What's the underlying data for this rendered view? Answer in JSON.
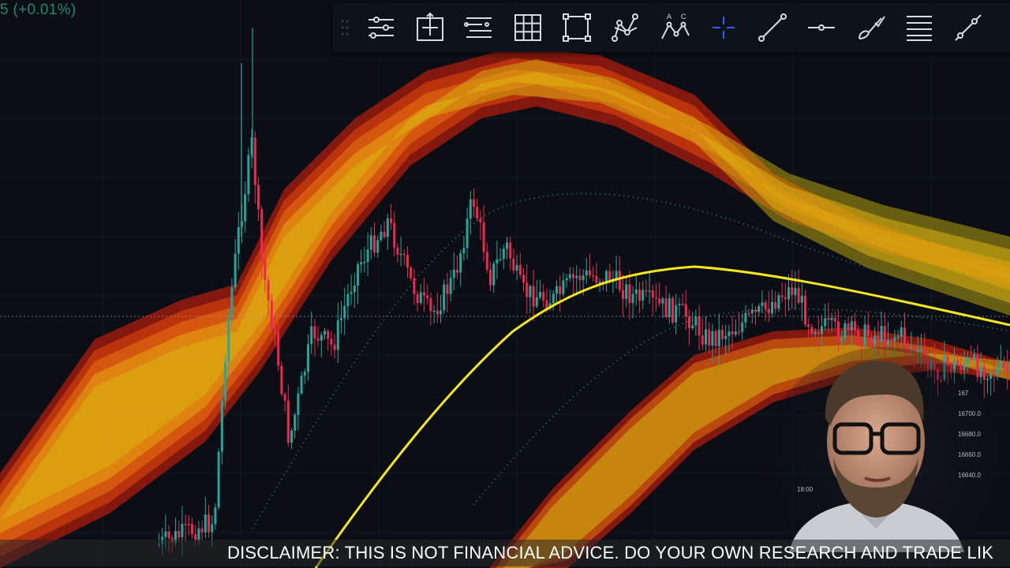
{
  "header": {
    "price_change": "5 (+0.01%)"
  },
  "toolbar": {
    "tools": [
      "trendline-settings-icon",
      "move-crosshair-box-icon",
      "fib-levels-icon",
      "grid-icon",
      "rectangle-icon",
      "pattern-nodes-icon",
      "abc-pattern-icon",
      "crosshair-icon",
      "trend-line-icon",
      "horizontal-line-icon",
      "brush-icon",
      "text-lines-icon",
      "ray-icon"
    ],
    "active_tool": "crosshair-icon"
  },
  "caption": {
    "text": "DISCLAIMER: THIS IS NOT FINANCIAL ADVICE. DO YOUR OWN RESEARCH AND TRADE LIK"
  },
  "mini_chart": {
    "price_labels": [
      "167",
      "16700.0",
      "16680.0",
      "16660.0",
      "16640.0"
    ],
    "time_label": "18:00"
  },
  "colors": {
    "background": "#0b0e14",
    "up_candle": "#26a69a",
    "down_candle": "#ef2850",
    "yellow_ma": "#f5e620",
    "band_red": "#e8200a",
    "band_orange": "#f07a10",
    "band_yellow": "#d6c010",
    "toolbar_icon": "#d8dbe2",
    "active_icon": "#2962ff"
  }
}
